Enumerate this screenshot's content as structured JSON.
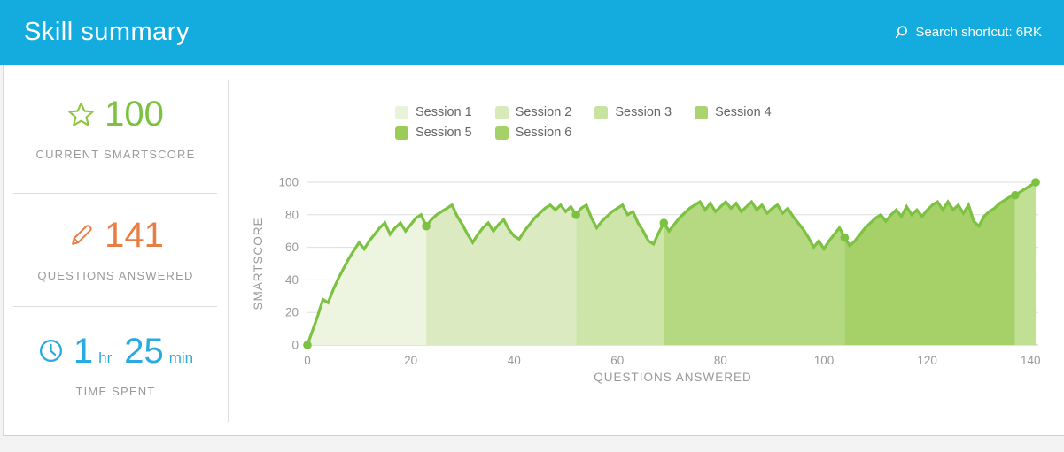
{
  "header": {
    "title": "Skill summary",
    "search_shortcut": "Search shortcut: 6RK",
    "search_icon": "search-icon",
    "bg_color": "#14acdf"
  },
  "stats": {
    "smartscore": {
      "icon": "star-icon",
      "value": "100",
      "label": "CURRENT SMARTSCORE",
      "color": "#7cc142"
    },
    "questions": {
      "icon": "pencil-icon",
      "value": "141",
      "label": "QUESTIONS ANSWERED",
      "color": "#e87d45"
    },
    "time": {
      "icon": "clock-icon",
      "hours": "1",
      "hours_unit": "hr",
      "minutes": "25",
      "minutes_unit": "min",
      "label": "TIME SPENT",
      "color": "#29abe2"
    }
  },
  "chart_data": {
    "type": "area",
    "title": "",
    "xlabel": "QUESTIONS ANSWERED",
    "ylabel": "SMARTSCORE",
    "xlim": [
      0,
      141.5
    ],
    "ylim": [
      0,
      100
    ],
    "x_ticks": [
      0,
      20,
      40,
      60,
      80,
      100,
      120,
      140
    ],
    "y_ticks": [
      0,
      20,
      40,
      60,
      80,
      100
    ],
    "grid": "horizontal-only",
    "legend_position": "top",
    "line_color": "#7cc142",
    "dot_color": "#7cc142",
    "grid_color": "#dddddd",
    "axis_line_color": "#c8c8c8",
    "sessions": [
      {
        "name": "Session 1",
        "x_start": 0,
        "x_end": 23,
        "fill": "#edf5e0",
        "swatch": "#e9f3da"
      },
      {
        "name": "Session 2",
        "x_start": 23,
        "x_end": 52,
        "fill": "#dceac1",
        "swatch": "#d8eaba"
      },
      {
        "name": "Session 3",
        "x_start": 52,
        "x_end": 69,
        "fill": "#cee5aa",
        "swatch": "#c8e2a0"
      },
      {
        "name": "Session 4",
        "x_start": 69,
        "x_end": 104,
        "fill": "#b5d981",
        "swatch": "#abd470"
      },
      {
        "name": "Session 5",
        "x_start": 104,
        "x_end": 137,
        "fill": "#a5d168",
        "swatch": "#9ccc58"
      },
      {
        "name": "Session 6",
        "x_start": 137,
        "x_end": 141,
        "fill": "#c2e094",
        "swatch": "#a5d168"
      }
    ],
    "points": [
      [
        0,
        0
      ],
      [
        1,
        9
      ],
      [
        2,
        18
      ],
      [
        3,
        28
      ],
      [
        4,
        26
      ],
      [
        5,
        34
      ],
      [
        6,
        41
      ],
      [
        7,
        47
      ],
      [
        8,
        53
      ],
      [
        9,
        58
      ],
      [
        10,
        63
      ],
      [
        11,
        59
      ],
      [
        12,
        64
      ],
      [
        13,
        68
      ],
      [
        14,
        72
      ],
      [
        15,
        75
      ],
      [
        16,
        68
      ],
      [
        17,
        72
      ],
      [
        18,
        75
      ],
      [
        19,
        70
      ],
      [
        20,
        74
      ],
      [
        21,
        78
      ],
      [
        22,
        80
      ],
      [
        23,
        73
      ],
      [
        24,
        77
      ],
      [
        25,
        80
      ],
      [
        26,
        82
      ],
      [
        27,
        84
      ],
      [
        28,
        86
      ],
      [
        29,
        79
      ],
      [
        30,
        74
      ],
      [
        31,
        68
      ],
      [
        32,
        63
      ],
      [
        33,
        68
      ],
      [
        34,
        72
      ],
      [
        35,
        75
      ],
      [
        36,
        70
      ],
      [
        37,
        74
      ],
      [
        38,
        77
      ],
      [
        39,
        71
      ],
      [
        40,
        67
      ],
      [
        41,
        65
      ],
      [
        42,
        70
      ],
      [
        43,
        74
      ],
      [
        44,
        78
      ],
      [
        45,
        81
      ],
      [
        46,
        84
      ],
      [
        47,
        86
      ],
      [
        48,
        83
      ],
      [
        49,
        86
      ],
      [
        50,
        82
      ],
      [
        51,
        85
      ],
      [
        52,
        80
      ],
      [
        53,
        84
      ],
      [
        54,
        86
      ],
      [
        55,
        78
      ],
      [
        56,
        72
      ],
      [
        57,
        76
      ],
      [
        58,
        79
      ],
      [
        59,
        82
      ],
      [
        60,
        84
      ],
      [
        61,
        86
      ],
      [
        62,
        80
      ],
      [
        63,
        82
      ],
      [
        64,
        75
      ],
      [
        65,
        70
      ],
      [
        66,
        64
      ],
      [
        67,
        62
      ],
      [
        68,
        69
      ],
      [
        69,
        75
      ],
      [
        70,
        70
      ],
      [
        71,
        74
      ],
      [
        72,
        78
      ],
      [
        73,
        81
      ],
      [
        74,
        84
      ],
      [
        75,
        86
      ],
      [
        76,
        88
      ],
      [
        77,
        83
      ],
      [
        78,
        87
      ],
      [
        79,
        82
      ],
      [
        80,
        85
      ],
      [
        81,
        88
      ],
      [
        82,
        84
      ],
      [
        83,
        87
      ],
      [
        84,
        82
      ],
      [
        85,
        85
      ],
      [
        86,
        88
      ],
      [
        87,
        83
      ],
      [
        88,
        86
      ],
      [
        89,
        81
      ],
      [
        90,
        84
      ],
      [
        91,
        86
      ],
      [
        92,
        81
      ],
      [
        93,
        84
      ],
      [
        94,
        79
      ],
      [
        95,
        75
      ],
      [
        96,
        71
      ],
      [
        97,
        66
      ],
      [
        98,
        60
      ],
      [
        99,
        64
      ],
      [
        100,
        59
      ],
      [
        101,
        64
      ],
      [
        102,
        68
      ],
      [
        103,
        72
      ],
      [
        104,
        66
      ],
      [
        105,
        61
      ],
      [
        106,
        64
      ],
      [
        107,
        68
      ],
      [
        108,
        72
      ],
      [
        109,
        75
      ],
      [
        110,
        78
      ],
      [
        111,
        80
      ],
      [
        112,
        76
      ],
      [
        113,
        80
      ],
      [
        114,
        83
      ],
      [
        115,
        79
      ],
      [
        116,
        85
      ],
      [
        117,
        80
      ],
      [
        118,
        83
      ],
      [
        119,
        79
      ],
      [
        120,
        83
      ],
      [
        121,
        86
      ],
      [
        122,
        88
      ],
      [
        123,
        83
      ],
      [
        124,
        88
      ],
      [
        125,
        83
      ],
      [
        126,
        86
      ],
      [
        127,
        81
      ],
      [
        128,
        86
      ],
      [
        129,
        76
      ],
      [
        130,
        73
      ],
      [
        131,
        79
      ],
      [
        132,
        82
      ],
      [
        133,
        84
      ],
      [
        134,
        87
      ],
      [
        135,
        89
      ],
      [
        136,
        91
      ],
      [
        137,
        92
      ],
      [
        138,
        94
      ],
      [
        139,
        96
      ],
      [
        140,
        98
      ],
      [
        141,
        100
      ]
    ],
    "session_end_dots": [
      [
        0,
        0
      ],
      [
        23,
        73
      ],
      [
        52,
        80
      ],
      [
        69,
        75
      ],
      [
        104,
        66
      ],
      [
        137,
        92
      ],
      [
        141,
        100
      ]
    ]
  }
}
